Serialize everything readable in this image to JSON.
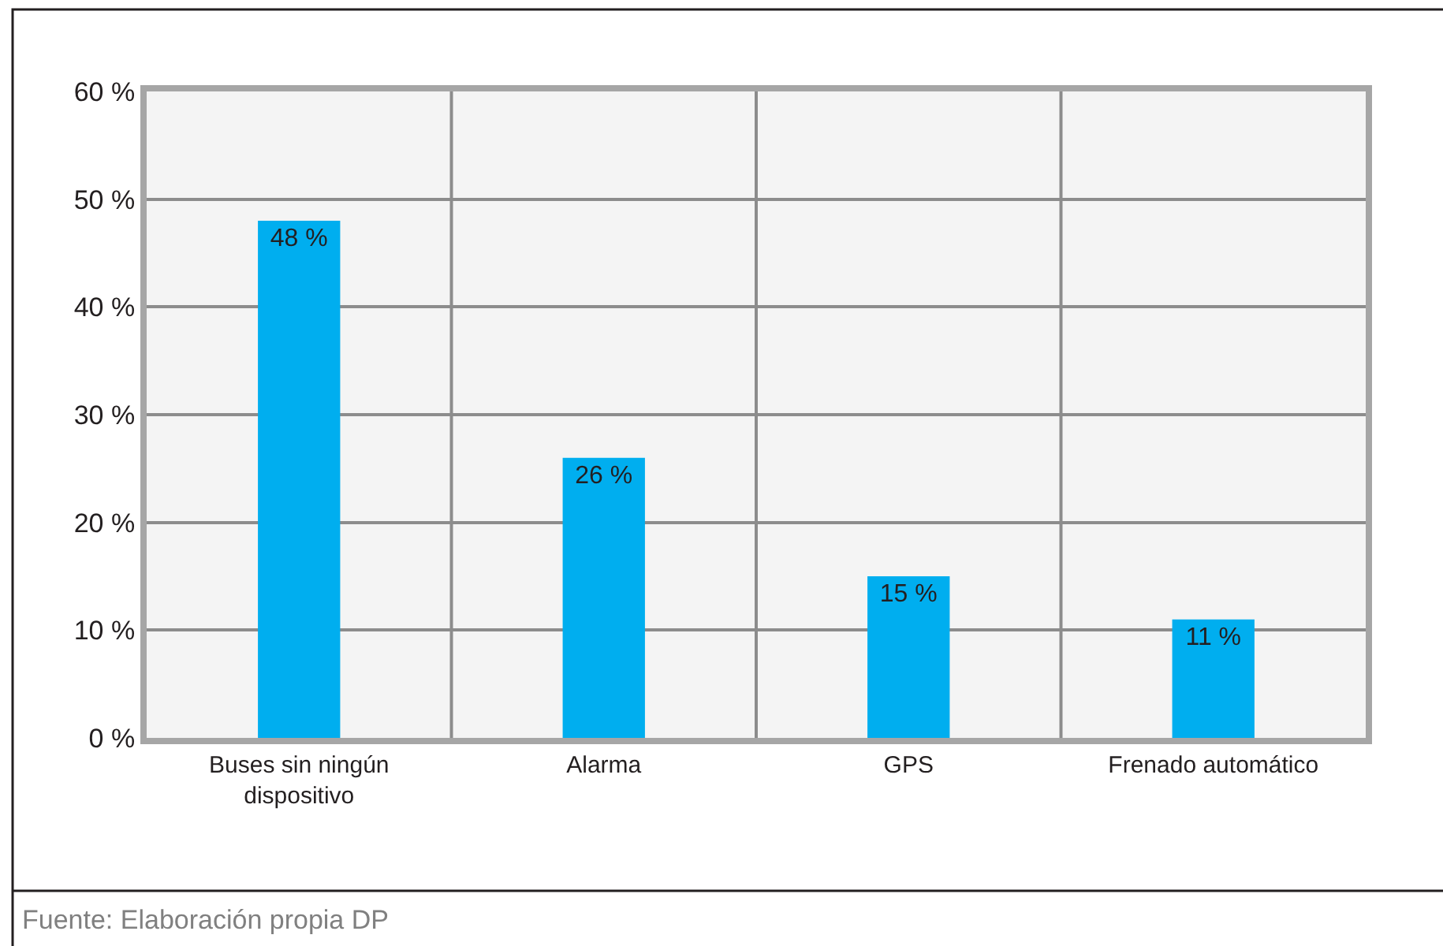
{
  "chart_data": {
    "type": "bar",
    "categories": [
      "Buses sin ningún dispositivo",
      "Alarma",
      "GPS",
      "Frenado automático"
    ],
    "values": [
      48,
      26,
      15,
      11
    ],
    "value_labels": [
      "48 %",
      "26 %",
      "15 %",
      "11 %"
    ],
    "color": "#00aeef",
    "ylim": [
      0,
      60
    ],
    "yticks": [
      {
        "value": 0,
        "label": "0 %"
      },
      {
        "value": 10,
        "label": "10 %"
      },
      {
        "value": 20,
        "label": "20 %"
      },
      {
        "value": 30,
        "label": "30 %"
      },
      {
        "value": 40,
        "label": "40 %"
      },
      {
        "value": 50,
        "label": "50 %"
      },
      {
        "value": 60,
        "label": "60 %"
      }
    ],
    "grid": true,
    "annotations": [
      "Fuente: Elaboración propia DP"
    ]
  }
}
